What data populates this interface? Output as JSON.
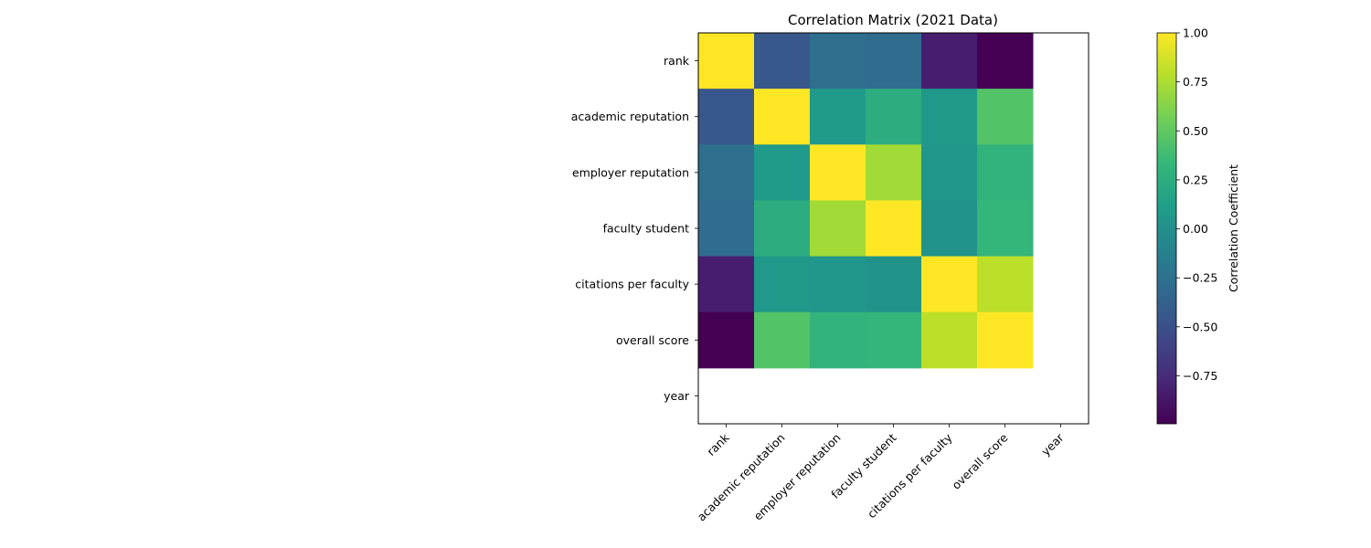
{
  "chart_data": {
    "type": "heatmap",
    "title": "Correlation Matrix (2021 Data)",
    "row_labels": [
      "rank",
      "academic reputation",
      "employer reputation",
      "faculty student",
      "citations per faculty",
      "overall score",
      "year"
    ],
    "col_labels": [
      "rank",
      "academic reputation",
      "employer reputation",
      "faculty student",
      "citations per faculty",
      "overall score",
      "year"
    ],
    "values": [
      [
        1.0,
        -0.45,
        -0.27,
        -0.3,
        -0.83,
        -1.0,
        null
      ],
      [
        -0.45,
        1.0,
        0.08,
        0.25,
        0.07,
        0.45,
        null
      ],
      [
        -0.27,
        0.08,
        1.0,
        0.72,
        0.05,
        0.3,
        null
      ],
      [
        -0.3,
        0.25,
        0.72,
        1.0,
        0.03,
        0.32,
        null
      ],
      [
        -0.83,
        0.07,
        0.05,
        0.03,
        1.0,
        0.8,
        null
      ],
      [
        -1.0,
        0.45,
        0.3,
        0.32,
        0.8,
        1.0,
        null
      ],
      [
        null,
        null,
        null,
        null,
        null,
        null,
        null
      ]
    ],
    "colormap": "viridis",
    "vmin": -0.995,
    "vmax": 1.0,
    "colorbar": {
      "label": "Correlation Coefficient",
      "ticks": [
        1.0,
        0.75,
        0.5,
        0.25,
        0.0,
        -0.25,
        -0.5,
        -0.75
      ],
      "tick_labels": [
        "1.00",
        "0.75",
        "0.50",
        "0.25",
        "0.00",
        "−0.25",
        "−0.50",
        "−0.75"
      ]
    }
  }
}
